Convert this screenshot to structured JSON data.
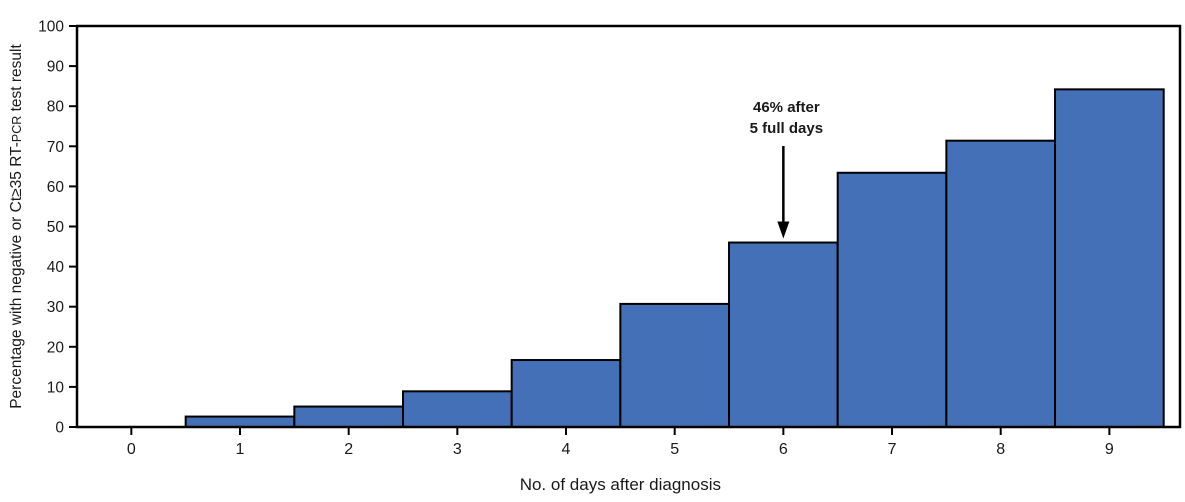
{
  "chart_data": {
    "type": "bar",
    "title": "",
    "xlabel": "No. of days after diagnosis",
    "ylabel": "Percentage with negative or Ct≥35 RT-PCR test result",
    "ylabel_parts": {
      "pre": "Percentage with negative or Ct≥35 RT-",
      "small_caps": "PCR",
      "post": " test result"
    },
    "categories": [
      0,
      1,
      2,
      3,
      4,
      5,
      6,
      7,
      8,
      9
    ],
    "values": [
      0,
      2.6,
      5.1,
      8.9,
      16.7,
      30.7,
      46,
      63.4,
      71.4,
      84.2
    ],
    "bar_width_days": 1,
    "xlim": [
      -0.5,
      9.65
    ],
    "ylim": [
      0,
      100
    ],
    "y_ticks": [
      0,
      10,
      20,
      30,
      40,
      50,
      60,
      70,
      80,
      90,
      100
    ],
    "x_ticks": [
      0,
      1,
      2,
      3,
      4,
      5,
      6,
      7,
      8,
      9
    ],
    "grid": false,
    "legend": null,
    "annotation": {
      "lines": [
        "46% after",
        "5 full days"
      ],
      "target_day": 6,
      "target_value": 46
    },
    "colors": {
      "bar_fill": "#4470B8",
      "bar_stroke": "#000000",
      "axis": "#000000",
      "text": "#1A1A1A"
    }
  }
}
